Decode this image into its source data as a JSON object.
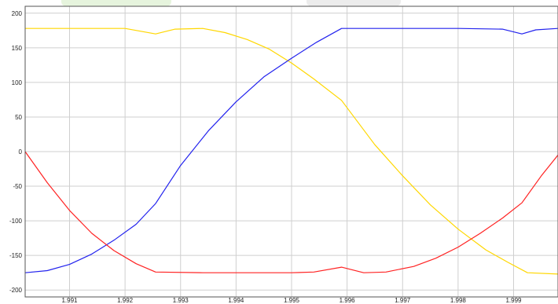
{
  "chart_data": {
    "type": "line",
    "title": "",
    "xlabel": "",
    "ylabel": "",
    "xlim": [
      1.9902,
      1.9998
    ],
    "ylim": [
      -210,
      210
    ],
    "grid": true,
    "legend": "none",
    "x_ticks": [
      1.991,
      1.992,
      1.993,
      1.994,
      1.995,
      1.996,
      1.997,
      1.998,
      1.999
    ],
    "x_tick_labels": [
      "1.991",
      "1.992",
      "1.993",
      "1.994",
      "1.995",
      "1.996",
      "1.997",
      "1.998",
      "1.999"
    ],
    "y_ticks": [
      -200,
      -150,
      -100,
      -50,
      0,
      50,
      100,
      150,
      200
    ],
    "y_tick_labels": [
      "-200",
      "-150",
      "-100",
      "-50",
      "0",
      "50",
      "100",
      "150",
      "200"
    ],
    "series": [
      {
        "color": "#ffd700",
        "x": [
          1.9902,
          1.991,
          1.992,
          1.99255,
          1.9929,
          1.9934,
          1.9938,
          1.9942,
          1.9946,
          1.995,
          1.9954,
          1.9959,
          1.9965,
          1.997,
          1.9975,
          1.998,
          1.9985,
          1.9989,
          1.99925,
          1.9998
        ],
        "y": [
          178,
          178,
          178,
          170,
          177,
          178,
          172,
          162,
          148,
          128,
          105,
          74,
          10,
          -35,
          -77,
          -112,
          -142,
          -160,
          -175,
          -177
        ]
      },
      {
        "color": "#2222ee",
        "x": [
          1.9902,
          1.9906,
          1.991,
          1.9914,
          1.9918,
          1.9922,
          1.99255,
          1.993,
          1.9935,
          1.994,
          1.9945,
          1.995,
          1.99545,
          1.9959,
          1.9965,
          1.997,
          1.998,
          1.9988,
          1.99915,
          1.9994,
          1.9998
        ],
        "y": [
          -175,
          -172,
          -163,
          -148,
          -128,
          -105,
          -75,
          -20,
          30,
          72,
          108,
          135,
          158,
          178,
          178,
          178,
          178,
          177,
          170,
          176,
          178
        ]
      },
      {
        "color": "#ff2222",
        "x": [
          1.9902,
          1.9906,
          1.991,
          1.9914,
          1.9918,
          1.9922,
          1.99255,
          1.9934,
          1.995,
          1.9954,
          1.9959,
          1.9963,
          1.9967,
          1.9972,
          1.9976,
          1.998,
          1.9984,
          1.9988,
          1.99915,
          1.9995,
          1.9998
        ],
        "y": [
          0,
          -45,
          -85,
          -118,
          -143,
          -162,
          -174,
          -175,
          -175,
          -174,
          -167,
          -175,
          -174,
          -166,
          -154,
          -138,
          -118,
          -96,
          -74,
          -35,
          -5
        ]
      }
    ]
  }
}
